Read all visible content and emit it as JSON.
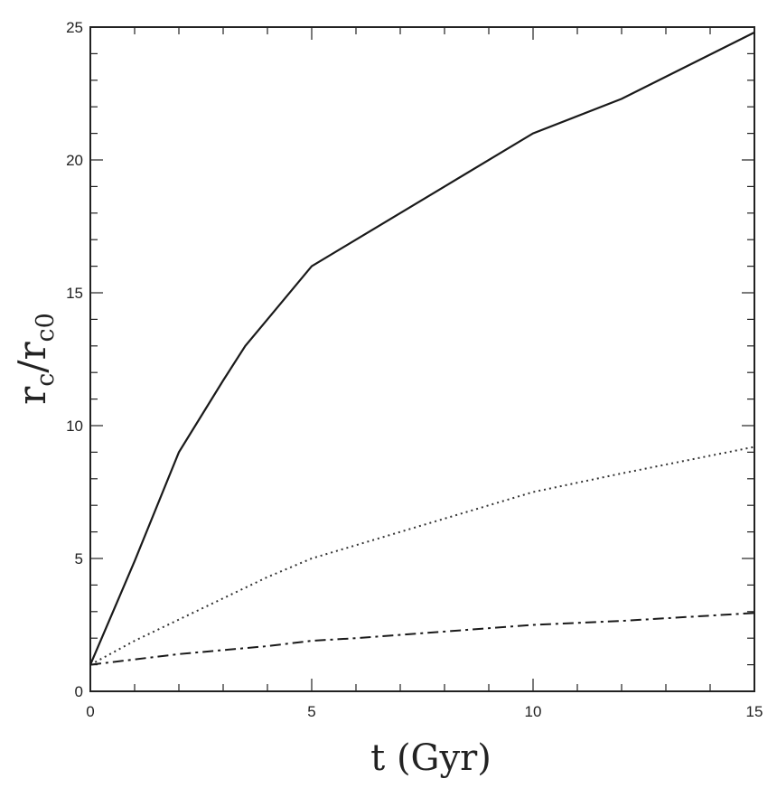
{
  "chart_data": {
    "type": "line",
    "title": "",
    "xlabel": "t (Gyr)",
    "ylabel_main": "r",
    "ylabel_sub1": "c",
    "ylabel_sep": "/",
    "ylabel_main2": "r",
    "ylabel_sub2": "c0",
    "xlim": [
      0,
      15
    ],
    "ylim": [
      0,
      25
    ],
    "x_ticks": [
      0,
      5,
      10,
      15
    ],
    "x_tick_labels": [
      "0",
      "5",
      "10",
      "15"
    ],
    "y_ticks": [
      0,
      5,
      10,
      15,
      20,
      25
    ],
    "y_tick_labels": [
      "0",
      "5",
      "10",
      "15",
      "20",
      "25"
    ],
    "grid": false,
    "series": [
      {
        "style": "solid",
        "color": "#1a1a1a",
        "x": [
          0,
          1,
          2,
          3,
          3.5,
          4,
          5,
          6,
          8,
          10,
          12,
          15
        ],
        "y": [
          1,
          4.9,
          9,
          11.7,
          13,
          14,
          16,
          17,
          19,
          21,
          22.3,
          24.8
        ]
      },
      {
        "style": "dotted",
        "color": "#333333",
        "x": [
          0,
          1,
          2,
          3,
          4,
          5,
          6,
          8,
          10,
          12,
          15
        ],
        "y": [
          1,
          1.9,
          2.7,
          3.5,
          4.3,
          5,
          5.5,
          6.5,
          7.5,
          8.2,
          9.2
        ]
      },
      {
        "style": "dashdot",
        "color": "#1a1a1a",
        "x": [
          0,
          2,
          4,
          5,
          6,
          8,
          10,
          12,
          15
        ],
        "y": [
          1,
          1.4,
          1.7,
          1.9,
          2.0,
          2.25,
          2.5,
          2.65,
          2.95
        ]
      }
    ]
  }
}
